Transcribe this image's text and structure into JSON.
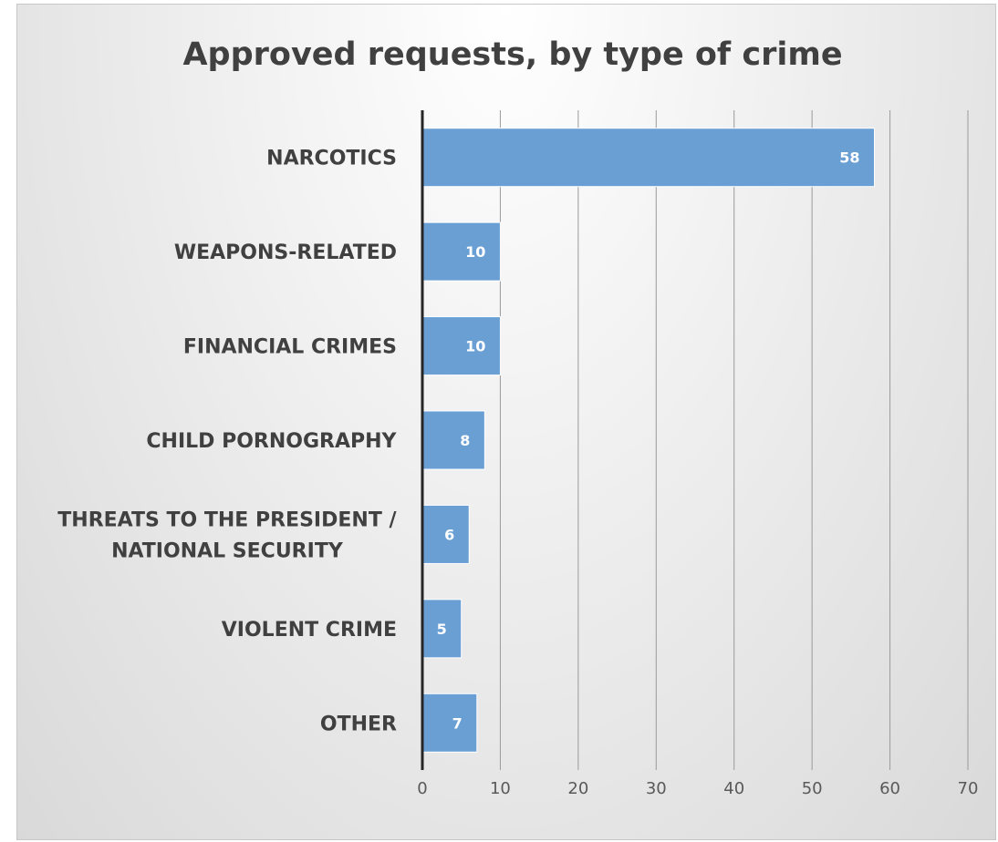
{
  "chart_data": {
    "type": "bar",
    "orientation": "horizontal",
    "title": "Approved requests, by type of crime",
    "categories": [
      [
        "NARCOTICS"
      ],
      [
        "WEAPONS-RELATED"
      ],
      [
        "FINANCIAL CRIMES"
      ],
      [
        "CHILD PORNOGRAPHY"
      ],
      [
        "THREATS TO THE PRESIDENT /",
        "NATIONAL SECURITY"
      ],
      [
        "VIOLENT CRIME"
      ],
      [
        "OTHER"
      ]
    ],
    "values": [
      58,
      10,
      10,
      8,
      6,
      5,
      7
    ],
    "xlim": [
      0,
      70
    ],
    "x_ticks": [
      0,
      10,
      20,
      30,
      40,
      50,
      60,
      70
    ],
    "grid": "vertical",
    "bar_color": "#6a9fd4",
    "data_labels": true
  }
}
